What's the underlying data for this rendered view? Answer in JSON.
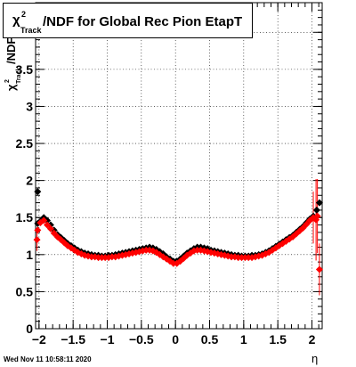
{
  "title": {
    "chi": "χ",
    "sup": "2",
    "sub": "Track",
    "main": "/NDF for Global Rec Pion EtapT"
  },
  "footer_text": "Wed Nov 11 10:58:11 2020",
  "chart_data": {
    "type": "scatter",
    "title": "χ²_Track/NDF for Global Rec Pion EtapT",
    "xlabel": "η",
    "ylabel": "χ²_Track/NDF",
    "ylabel_parts": {
      "chi": "χ",
      "sup": "2",
      "sub": "Track",
      "rest": "/NDF"
    },
    "xlim": [
      -2.05,
      2.15
    ],
    "ylim": [
      0,
      4.4
    ],
    "x_ticks": [
      -2,
      -1.5,
      -1,
      -0.5,
      0,
      0.5,
      1,
      1.5,
      2
    ],
    "x_tick_labels": [
      "−2",
      "−1.5",
      "−1",
      "−0.5",
      "0",
      "0.5",
      "1",
      "1.5",
      "2"
    ],
    "y_ticks": [
      0,
      0.5,
      1,
      1.5,
      2,
      2.5,
      3,
      3.5,
      4
    ],
    "y_tick_labels": [
      "0",
      "0.5",
      "1",
      "1.5",
      "2",
      "2.5",
      "3",
      "3.5",
      "4"
    ],
    "grid": true,
    "series": [
      {
        "color": "#000000",
        "points": [
          [
            -2.02,
            1.85
          ],
          [
            -2.02,
            1.42
          ],
          [
            -1.98,
            1.45
          ],
          [
            -1.93,
            1.5
          ],
          [
            -1.88,
            1.46
          ],
          [
            -1.83,
            1.4
          ],
          [
            -1.78,
            1.33
          ],
          [
            -1.73,
            1.27
          ],
          [
            -1.68,
            1.23
          ],
          [
            -1.63,
            1.19
          ],
          [
            -1.58,
            1.15
          ],
          [
            -1.53,
            1.12
          ],
          [
            -1.48,
            1.09
          ],
          [
            -1.43,
            1.06
          ],
          [
            -1.38,
            1.04
          ],
          [
            -1.33,
            1.02
          ],
          [
            -1.28,
            1.01
          ],
          [
            -1.23,
            1.0
          ],
          [
            -1.18,
            0.99
          ],
          [
            -1.13,
            0.99
          ],
          [
            -1.08,
            0.98
          ],
          [
            -1.03,
            0.98
          ],
          [
            -0.98,
            0.99
          ],
          [
            -0.93,
            0.99
          ],
          [
            -0.88,
            1.0
          ],
          [
            -0.83,
            1.01
          ],
          [
            -0.78,
            1.02
          ],
          [
            -0.73,
            1.03
          ],
          [
            -0.68,
            1.04
          ],
          [
            -0.63,
            1.05
          ],
          [
            -0.58,
            1.06
          ],
          [
            -0.53,
            1.07
          ],
          [
            -0.48,
            1.08
          ],
          [
            -0.43,
            1.09
          ],
          [
            -0.38,
            1.1
          ],
          [
            -0.33,
            1.09
          ],
          [
            -0.28,
            1.07
          ],
          [
            -0.23,
            1.04
          ],
          [
            -0.18,
            1.01
          ],
          [
            -0.13,
            0.97
          ],
          [
            -0.08,
            0.94
          ],
          [
            -0.03,
            0.91
          ],
          [
            0.02,
            0.91
          ],
          [
            0.07,
            0.94
          ],
          [
            0.12,
            0.98
          ],
          [
            0.17,
            1.02
          ],
          [
            0.22,
            1.05
          ],
          [
            0.27,
            1.08
          ],
          [
            0.32,
            1.1
          ],
          [
            0.37,
            1.1
          ],
          [
            0.42,
            1.09
          ],
          [
            0.47,
            1.08
          ],
          [
            0.52,
            1.06
          ],
          [
            0.57,
            1.05
          ],
          [
            0.62,
            1.04
          ],
          [
            0.67,
            1.03
          ],
          [
            0.72,
            1.02
          ],
          [
            0.77,
            1.01
          ],
          [
            0.82,
            1.0
          ],
          [
            0.87,
            0.99
          ],
          [
            0.92,
            0.99
          ],
          [
            0.97,
            0.98
          ],
          [
            1.02,
            0.98
          ],
          [
            1.07,
            0.98
          ],
          [
            1.12,
            0.99
          ],
          [
            1.17,
            0.99
          ],
          [
            1.22,
            1.0
          ],
          [
            1.27,
            1.01
          ],
          [
            1.32,
            1.03
          ],
          [
            1.37,
            1.05
          ],
          [
            1.42,
            1.08
          ],
          [
            1.47,
            1.11
          ],
          [
            1.52,
            1.14
          ],
          [
            1.57,
            1.17
          ],
          [
            1.62,
            1.2
          ],
          [
            1.67,
            1.23
          ],
          [
            1.72,
            1.26
          ],
          [
            1.77,
            1.3
          ],
          [
            1.82,
            1.34
          ],
          [
            1.87,
            1.38
          ],
          [
            1.92,
            1.43
          ],
          [
            1.97,
            1.48
          ],
          [
            2.02,
            1.52
          ],
          [
            2.07,
            1.6
          ],
          [
            2.11,
            1.7
          ]
        ]
      },
      {
        "color": "#ff0000",
        "points": [
          [
            -2.03,
            1.2
          ],
          [
            -2.02,
            1.33
          ],
          [
            -1.98,
            1.43
          ],
          [
            -1.93,
            1.46
          ],
          [
            -1.88,
            1.4
          ],
          [
            -1.83,
            1.35
          ],
          [
            -1.78,
            1.29
          ],
          [
            -1.73,
            1.24
          ],
          [
            -1.68,
            1.2
          ],
          [
            -1.63,
            1.16
          ],
          [
            -1.58,
            1.12
          ],
          [
            -1.53,
            1.09
          ],
          [
            -1.48,
            1.06
          ],
          [
            -1.43,
            1.03
          ],
          [
            -1.38,
            1.01
          ],
          [
            -1.33,
            0.99
          ],
          [
            -1.28,
            0.98
          ],
          [
            -1.23,
            0.97
          ],
          [
            -1.18,
            0.97
          ],
          [
            -1.13,
            0.96
          ],
          [
            -1.08,
            0.96
          ],
          [
            -1.03,
            0.96
          ],
          [
            -0.98,
            0.96
          ],
          [
            -0.93,
            0.97
          ],
          [
            -0.88,
            0.97
          ],
          [
            -0.83,
            0.98
          ],
          [
            -0.78,
            0.99
          ],
          [
            -0.73,
            1.0
          ],
          [
            -0.68,
            1.01
          ],
          [
            -0.63,
            1.02
          ],
          [
            -0.58,
            1.03
          ],
          [
            -0.53,
            1.04
          ],
          [
            -0.48,
            1.05
          ],
          [
            -0.43,
            1.06
          ],
          [
            -0.38,
            1.06
          ],
          [
            -0.33,
            1.05
          ],
          [
            -0.28,
            1.03
          ],
          [
            -0.23,
            1.0
          ],
          [
            -0.18,
            0.97
          ],
          [
            -0.13,
            0.94
          ],
          [
            -0.08,
            0.91
          ],
          [
            -0.03,
            0.88
          ],
          [
            0.02,
            0.88
          ],
          [
            0.07,
            0.91
          ],
          [
            0.12,
            0.95
          ],
          [
            0.17,
            0.99
          ],
          [
            0.22,
            1.02
          ],
          [
            0.27,
            1.05
          ],
          [
            0.32,
            1.06
          ],
          [
            0.37,
            1.06
          ],
          [
            0.42,
            1.05
          ],
          [
            0.47,
            1.04
          ],
          [
            0.52,
            1.03
          ],
          [
            0.57,
            1.02
          ],
          [
            0.62,
            1.01
          ],
          [
            0.67,
            1.0
          ],
          [
            0.72,
            0.99
          ],
          [
            0.77,
            0.98
          ],
          [
            0.82,
            0.97
          ],
          [
            0.87,
            0.97
          ],
          [
            0.92,
            0.96
          ],
          [
            0.97,
            0.96
          ],
          [
            1.02,
            0.96
          ],
          [
            1.07,
            0.96
          ],
          [
            1.12,
            0.96
          ],
          [
            1.17,
            0.97
          ],
          [
            1.22,
            0.98
          ],
          [
            1.27,
            0.99
          ],
          [
            1.32,
            1.01
          ],
          [
            1.37,
            1.03
          ],
          [
            1.42,
            1.06
          ],
          [
            1.47,
            1.09
          ],
          [
            1.52,
            1.12
          ],
          [
            1.57,
            1.15
          ],
          [
            1.62,
            1.18
          ],
          [
            1.67,
            1.21
          ],
          [
            1.72,
            1.24
          ],
          [
            1.77,
            1.28
          ],
          [
            1.82,
            1.32
          ],
          [
            1.87,
            1.36
          ],
          [
            1.92,
            1.41
          ],
          [
            1.97,
            1.46
          ],
          [
            2.02,
            1.5
          ],
          [
            2.06,
            1.47
          ],
          [
            2.08,
            1.52
          ],
          [
            2.11,
            0.8
          ]
        ],
        "errors": [
          [
            -2.03,
            0.15
          ],
          [
            2.02,
            0.35
          ],
          [
            2.06,
            0.55
          ],
          [
            2.08,
            0.5
          ],
          [
            2.11,
            0.35
          ]
        ]
      }
    ]
  }
}
